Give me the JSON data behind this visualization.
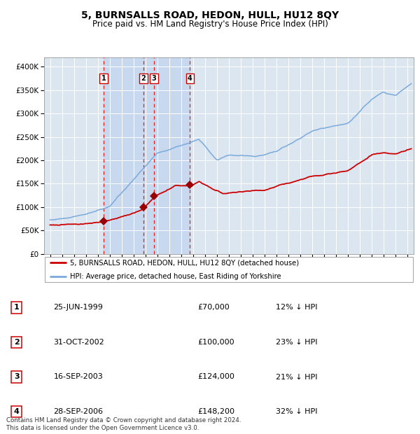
{
  "title": "5, BURNSALLS ROAD, HEDON, HULL, HU12 8QY",
  "subtitle": "Price paid vs. HM Land Registry's House Price Index (HPI)",
  "title_fontsize": 10,
  "subtitle_fontsize": 8.5,
  "background_color": "#ffffff",
  "plot_bg_color": "#dce6f0",
  "grid_color": "#ffffff",
  "red_line_color": "#cc0000",
  "blue_line_color": "#7aaadd",
  "sale_marker_color": "#990000",
  "dashed_line_color": "#dd2222",
  "shade_color": "#c8d8ee",
  "sale_points": [
    {
      "num": 1,
      "date_x": 1999.48,
      "price": 70000,
      "label": "25-JUN-1999",
      "price_label": "£70,000",
      "hpi_label": "12% ↓ HPI"
    },
    {
      "num": 2,
      "date_x": 2002.83,
      "price": 100000,
      "label": "31-OCT-2002",
      "price_label": "£100,000",
      "hpi_label": "23% ↓ HPI"
    },
    {
      "num": 3,
      "date_x": 2003.71,
      "price": 124000,
      "label": "16-SEP-2003",
      "price_label": "£124,000",
      "hpi_label": "21% ↓ HPI"
    },
    {
      "num": 4,
      "date_x": 2006.74,
      "price": 148200,
      "label": "28-SEP-2006",
      "price_label": "£148,200",
      "hpi_label": "32% ↓ HPI"
    }
  ],
  "ylim": [
    0,
    420000
  ],
  "xlim": [
    1994.5,
    2025.5
  ],
  "yticks": [
    0,
    50000,
    100000,
    150000,
    200000,
    250000,
    300000,
    350000,
    400000
  ],
  "ytick_labels": [
    "£0",
    "£50K",
    "£100K",
    "£150K",
    "£200K",
    "£250K",
    "£300K",
    "£350K",
    "£400K"
  ],
  "xticks": [
    1995,
    1996,
    1997,
    1998,
    1999,
    2000,
    2001,
    2002,
    2003,
    2004,
    2005,
    2006,
    2007,
    2008,
    2009,
    2010,
    2011,
    2012,
    2013,
    2014,
    2015,
    2016,
    2017,
    2018,
    2019,
    2020,
    2021,
    2022,
    2023,
    2024,
    2025
  ],
  "legend_red_label": "5, BURNSALLS ROAD, HEDON, HULL, HU12 8QY (detached house)",
  "legend_blue_label": "HPI: Average price, detached house, East Riding of Yorkshire",
  "footnote": "Contains HM Land Registry data © Crown copyright and database right 2024.\nThis data is licensed under the Open Government Licence v3.0."
}
